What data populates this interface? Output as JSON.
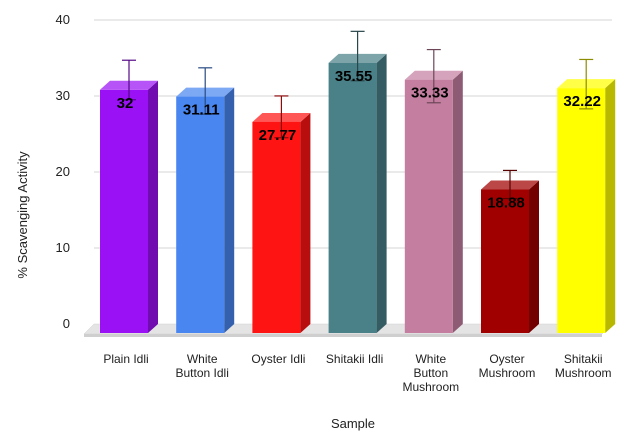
{
  "chart_data": {
    "type": "bar",
    "categories": [
      [
        "Plain Idli"
      ],
      [
        "White",
        "Button Idli"
      ],
      [
        "Oyster Idli"
      ],
      [
        "Shitakii Idli"
      ],
      [
        "White",
        "Button",
        "Mushroom"
      ],
      [
        "Oyster",
        "Mushroom"
      ],
      [
        "Shitakii",
        "Mushroom"
      ]
    ],
    "values": [
      32,
      31.11,
      27.77,
      35.55,
      33.33,
      18.88,
      32.22
    ],
    "value_labels": [
      "32",
      "31.11",
      "27.77",
      "35.55",
      "33.33",
      "18.88",
      "32.22"
    ],
    "error_upper": [
      35.3,
      34.3,
      30.6,
      39.1,
      36.7,
      20.8,
      35.4
    ],
    "error_lower": [
      30.1,
      28.2,
      25.1,
      32.6,
      29.7,
      17.1,
      28.9
    ],
    "colors": [
      "#9b11f5",
      "#4a86f0",
      "#ff1414",
      "#4a8088",
      "#c47fa0",
      "#a00000",
      "#ffff00"
    ],
    "xlabel": "Sample",
    "ylabel": "% Scavenging Activity",
    "ylim": [
      0,
      40
    ],
    "yticks": [
      0,
      10,
      20,
      30,
      40
    ],
    "grid": true,
    "style": "3d"
  }
}
